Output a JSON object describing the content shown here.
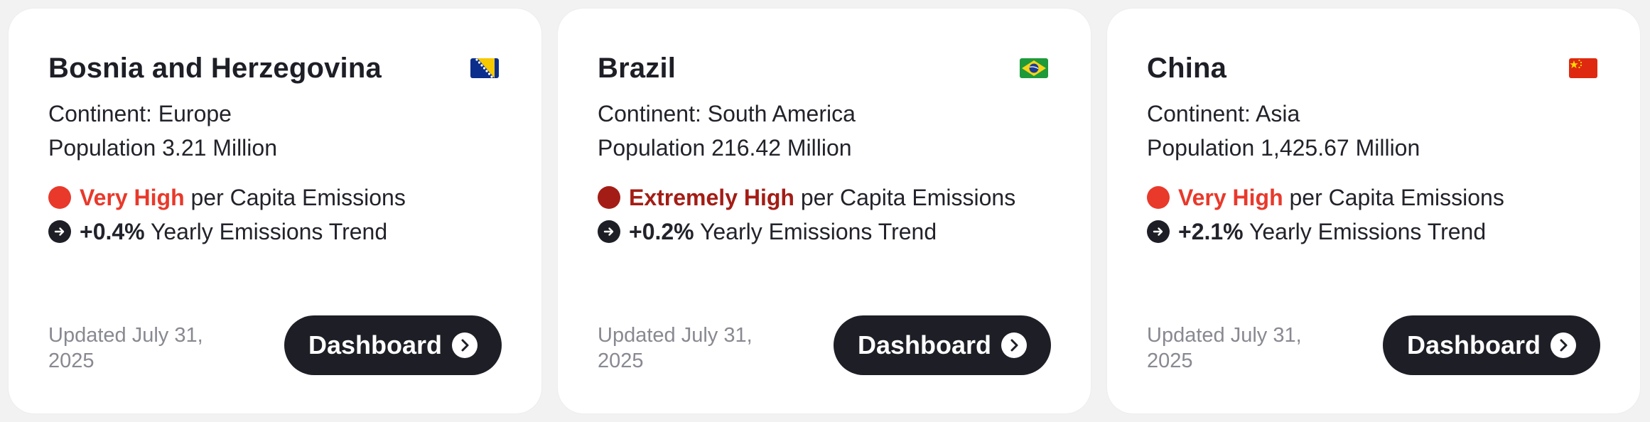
{
  "emission_label": "per Capita Emissions",
  "trend_label": "Yearly Emissions Trend",
  "button_label": "Dashboard",
  "icons": {
    "trend": "arrow-right-circle-icon",
    "button": "chevron-right-circle-icon"
  },
  "cards": [
    {
      "title": "Bosnia and Herzegovina",
      "flag": "bosnia-flag-icon",
      "continent": "Continent: Europe",
      "population": "Population 3.21 Million",
      "level": "Very High",
      "level_color": "#e8392b",
      "trend": "+0.4%",
      "updated": "Updated July 31, 2025"
    },
    {
      "title": "Brazil",
      "flag": "brazil-flag-icon",
      "continent": "Continent: South America",
      "population": "Population 216.42 Million",
      "level": "Extremely High",
      "level_color": "#a31d16",
      "trend": "+0.2%",
      "updated": "Updated July 31, 2025"
    },
    {
      "title": "China",
      "flag": "china-flag-icon",
      "continent": "Continent: Asia",
      "population": "Population 1,425.67 Million",
      "level": "Very High",
      "level_color": "#e8392b",
      "trend": "+2.1%",
      "updated": "Updated July 31, 2025"
    }
  ]
}
